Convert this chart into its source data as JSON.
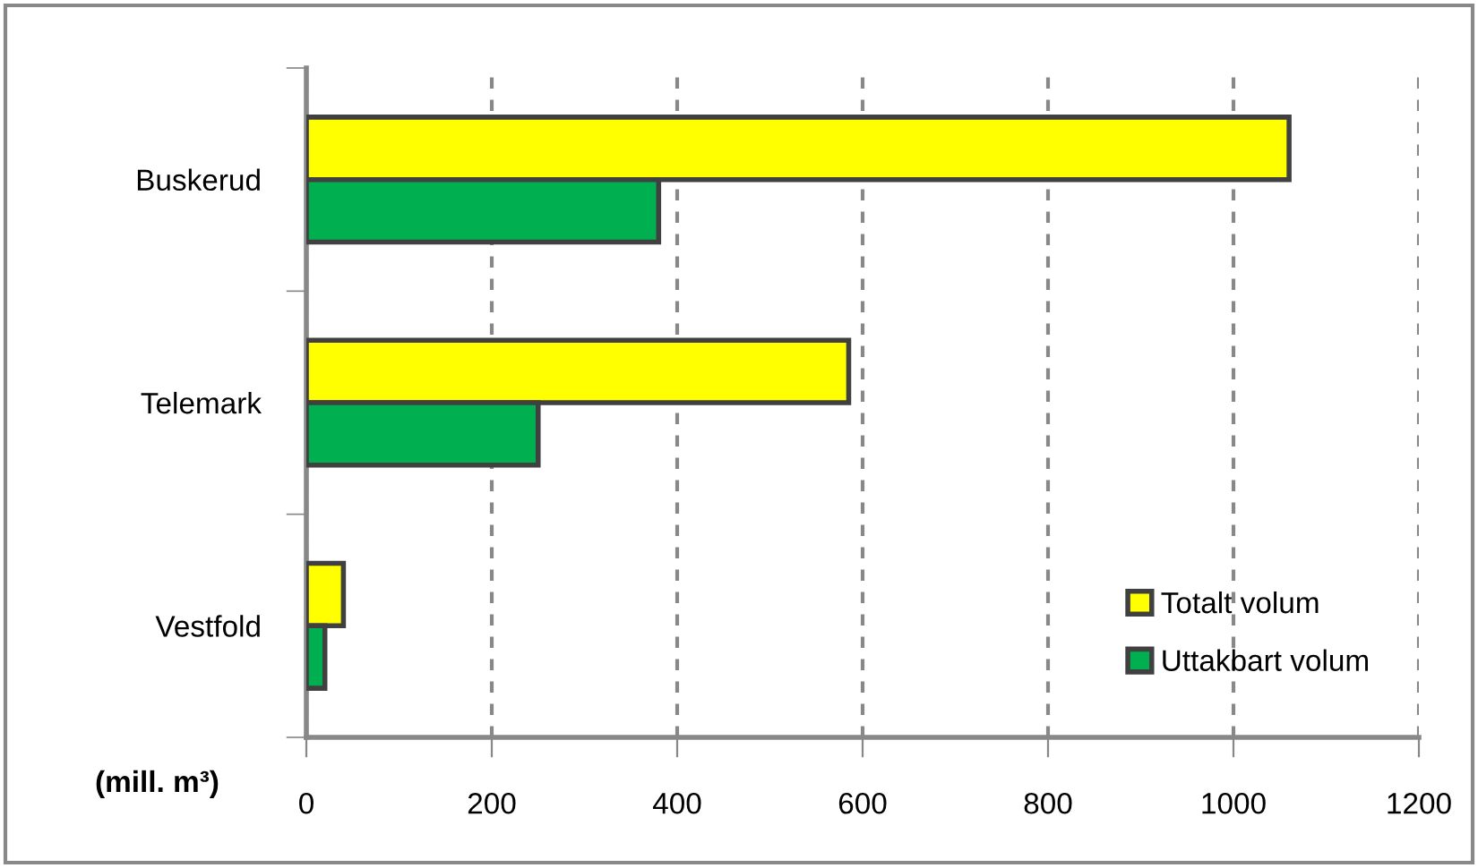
{
  "chart_data": {
    "type": "bar",
    "orientation": "horizontal",
    "categories": [
      "Buskerud",
      "Telemark",
      "Vestfold"
    ],
    "series": [
      {
        "name": "Totalt volum",
        "color": "#ffff00",
        "values": [
          1060,
          585,
          40
        ]
      },
      {
        "name": "Uttakbart volum",
        "color": "#00b050",
        "values": [
          380,
          250,
          20
        ]
      }
    ],
    "xlabel": "(mill. m³)",
    "xlim": [
      0,
      1200
    ],
    "xticks": [
      0,
      200,
      400,
      600,
      800,
      1000,
      1200
    ],
    "grid": "x",
    "legend": "bottom right"
  }
}
